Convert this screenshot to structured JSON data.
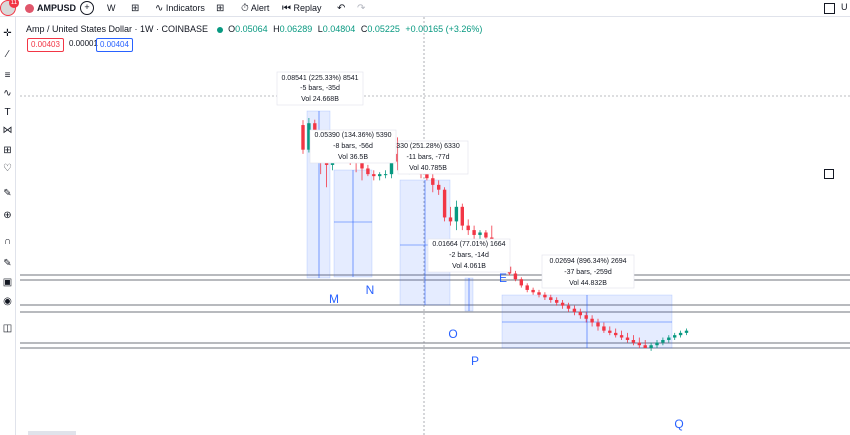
{
  "toolbar": {
    "avatar_badge": "11",
    "symbol": "AMPUSD",
    "add_symbol": "+",
    "interval": "W",
    "chart_type_icon": "candles-icon",
    "indicators": "Indicators",
    "layouts_icon": "grid-icon",
    "alert": "Alert",
    "replay": "Replay",
    "undo_icon": "undo-icon",
    "redo_icon": "redo-icon",
    "right_text": "U"
  },
  "legend": {
    "title": "Amp / United States Dollar · 1W · COINBASE",
    "o_label": "O",
    "o_value": "0.05064",
    "h_label": "H",
    "h_value": "0.06289",
    "l_label": "L",
    "l_value": "0.04804",
    "c_label": "C",
    "c_value": "0.05225",
    "change": "+0.00165 (+3.26%)",
    "sell": "0.00403",
    "spread": "0.00001",
    "buy": "0.00404"
  },
  "colors": {
    "up": "#089981",
    "down": "#f23645",
    "range_fill": "#2962ff",
    "accent": "#2962ff"
  },
  "chart_data": {
    "type": "candlestick",
    "symbol": "AMPUSD",
    "interval": "1W",
    "measurements": [
      {
        "label": "M",
        "text1": "0.08541 (225.33%) 8541",
        "text2": "-5 bars, -35d",
        "text3": "Vol 24.668B"
      },
      {
        "label": "N",
        "text1": "0.05390 (134.36%) 5390",
        "text2": "-8 bars, -56d",
        "text3": "Vol 36.5B"
      },
      {
        "label": "",
        "text1": "330 (251.28%) 6330",
        "text2": "-11 bars, -77d",
        "text3": "Vol 40.785B"
      },
      {
        "label": "E",
        "text1": "0.01664 (77.01%) 1664",
        "text2": "-2 bars, -14d",
        "text3": "Vol 4.061B"
      },
      {
        "label": "O",
        "text1": "",
        "text2": "",
        "text3": ""
      },
      {
        "label": "P",
        "text1": "0.02694 (896.34%) 2694",
        "text2": "-37 bars, -259d",
        "text3": "Vol 44.832B"
      },
      {
        "label": "Q",
        "text1": "",
        "text2": "",
        "text3": ""
      }
    ],
    "candles": [
      {
        "o": 0.07,
        "h": 0.0755,
        "l": 0.045,
        "c": 0.048
      },
      {
        "o": 0.048,
        "h": 0.078,
        "l": 0.046,
        "c": 0.072
      },
      {
        "o": 0.072,
        "h": 0.076,
        "l": 0.043,
        "c": 0.045
      },
      {
        "o": 0.045,
        "h": 0.052,
        "l": 0.033,
        "c": 0.042
      },
      {
        "o": 0.042,
        "h": 0.048,
        "l": 0.027,
        "c": 0.038
      },
      {
        "o": 0.038,
        "h": 0.05,
        "l": 0.035,
        "c": 0.047
      },
      {
        "o": 0.047,
        "h": 0.061,
        "l": 0.044,
        "c": 0.055
      },
      {
        "o": 0.055,
        "h": 0.058,
        "l": 0.042,
        "c": 0.046
      },
      {
        "o": 0.046,
        "h": 0.047,
        "l": 0.038,
        "c": 0.044
      },
      {
        "o": 0.044,
        "h": 0.048,
        "l": 0.034,
        "c": 0.04
      },
      {
        "o": 0.04,
        "h": 0.043,
        "l": 0.03,
        "c": 0.036
      },
      {
        "o": 0.036,
        "h": 0.038,
        "l": 0.032,
        "c": 0.033
      },
      {
        "o": 0.033,
        "h": 0.035,
        "l": 0.03,
        "c": 0.032
      },
      {
        "o": 0.032,
        "h": 0.034,
        "l": 0.03,
        "c": 0.033
      },
      {
        "o": 0.033,
        "h": 0.035,
        "l": 0.031,
        "c": 0.033
      },
      {
        "o": 0.033,
        "h": 0.047,
        "l": 0.031,
        "c": 0.045
      },
      {
        "o": 0.045,
        "h": 0.058,
        "l": 0.035,
        "c": 0.04
      },
      {
        "o": 0.04,
        "h": 0.05,
        "l": 0.034,
        "c": 0.038
      },
      {
        "o": 0.038,
        "h": 0.047,
        "l": 0.033,
        "c": 0.044
      },
      {
        "o": 0.044,
        "h": 0.051,
        "l": 0.034,
        "c": 0.036
      },
      {
        "o": 0.036,
        "h": 0.038,
        "l": 0.031,
        "c": 0.033
      },
      {
        "o": 0.033,
        "h": 0.036,
        "l": 0.03,
        "c": 0.031
      },
      {
        "o": 0.031,
        "h": 0.033,
        "l": 0.025,
        "c": 0.028
      },
      {
        "o": 0.028,
        "h": 0.03,
        "l": 0.024,
        "c": 0.026
      },
      {
        "o": 0.026,
        "h": 0.027,
        "l": 0.016,
        "c": 0.017
      },
      {
        "o": 0.017,
        "h": 0.02,
        "l": 0.015,
        "c": 0.016
      },
      {
        "o": 0.016,
        "h": 0.022,
        "l": 0.014,
        "c": 0.02
      },
      {
        "o": 0.02,
        "h": 0.021,
        "l": 0.014,
        "c": 0.015
      },
      {
        "o": 0.015,
        "h": 0.0165,
        "l": 0.013,
        "c": 0.014
      },
      {
        "o": 0.014,
        "h": 0.015,
        "l": 0.012,
        "c": 0.013
      },
      {
        "o": 0.013,
        "h": 0.014,
        "l": 0.0115,
        "c": 0.0135
      },
      {
        "o": 0.0135,
        "h": 0.014,
        "l": 0.0115,
        "c": 0.0125
      },
      {
        "o": 0.0125,
        "h": 0.015,
        "l": 0.01,
        "c": 0.011
      },
      {
        "o": 0.011,
        "h": 0.0115,
        "l": 0.0085,
        "c": 0.009
      },
      {
        "o": 0.009,
        "h": 0.0095,
        "l": 0.0075,
        "c": 0.008
      },
      {
        "o": 0.008,
        "h": 0.0085,
        "l": 0.007,
        "c": 0.0072
      },
      {
        "o": 0.0072,
        "h": 0.0075,
        "l": 0.0064,
        "c": 0.0066
      },
      {
        "o": 0.0066,
        "h": 0.0068,
        "l": 0.0058,
        "c": 0.006
      },
      {
        "o": 0.006,
        "h": 0.0062,
        "l": 0.0054,
        "c": 0.0056
      },
      {
        "o": 0.0056,
        "h": 0.0058,
        "l": 0.0052,
        "c": 0.0054
      },
      {
        "o": 0.0054,
        "h": 0.0056,
        "l": 0.005,
        "c": 0.0052
      },
      {
        "o": 0.0052,
        "h": 0.0054,
        "l": 0.0048,
        "c": 0.005
      },
      {
        "o": 0.005,
        "h": 0.0052,
        "l": 0.0046,
        "c": 0.0048
      },
      {
        "o": 0.0048,
        "h": 0.005,
        "l": 0.0044,
        "c": 0.0046
      },
      {
        "o": 0.0046,
        "h": 0.0048,
        "l": 0.0042,
        "c": 0.0044
      },
      {
        "o": 0.0044,
        "h": 0.0046,
        "l": 0.004,
        "c": 0.0042
      },
      {
        "o": 0.0042,
        "h": 0.0044,
        "l": 0.0038,
        "c": 0.004
      },
      {
        "o": 0.004,
        "h": 0.0042,
        "l": 0.0036,
        "c": 0.0038
      },
      {
        "o": 0.0038,
        "h": 0.004,
        "l": 0.0034,
        "c": 0.0036
      },
      {
        "o": 0.0036,
        "h": 0.0038,
        "l": 0.0032,
        "c": 0.0034
      },
      {
        "o": 0.0034,
        "h": 0.0036,
        "l": 0.003,
        "c": 0.0032
      },
      {
        "o": 0.0032,
        "h": 0.0034,
        "l": 0.0029,
        "c": 0.003
      },
      {
        "o": 0.003,
        "h": 0.0032,
        "l": 0.0028,
        "c": 0.0029
      },
      {
        "o": 0.0029,
        "h": 0.0031,
        "l": 0.0027,
        "c": 0.0028
      },
      {
        "o": 0.0028,
        "h": 0.003,
        "l": 0.0026,
        "c": 0.0027
      },
      {
        "o": 0.0027,
        "h": 0.0029,
        "l": 0.0025,
        "c": 0.0026
      },
      {
        "o": 0.0026,
        "h": 0.0028,
        "l": 0.0024,
        "c": 0.0025
      },
      {
        "o": 0.0025,
        "h": 0.0027,
        "l": 0.0023,
        "c": 0.0024
      },
      {
        "o": 0.0024,
        "h": 0.0026,
        "l": 0.0023,
        "c": 0.0023
      },
      {
        "o": 0.0023,
        "h": 0.0025,
        "l": 0.0022,
        "c": 0.0024
      },
      {
        "o": 0.0024,
        "h": 0.0026,
        "l": 0.0023,
        "c": 0.0025
      },
      {
        "o": 0.0025,
        "h": 0.0027,
        "l": 0.0024,
        "c": 0.0026
      },
      {
        "o": 0.0026,
        "h": 0.0028,
        "l": 0.0025,
        "c": 0.0027
      },
      {
        "o": 0.0027,
        "h": 0.0029,
        "l": 0.0026,
        "c": 0.0028
      },
      {
        "o": 0.0028,
        "h": 0.003,
        "l": 0.0027,
        "c": 0.0029
      },
      {
        "o": 0.0029,
        "h": 0.0031,
        "l": 0.0028,
        "c": 0.003
      }
    ]
  }
}
